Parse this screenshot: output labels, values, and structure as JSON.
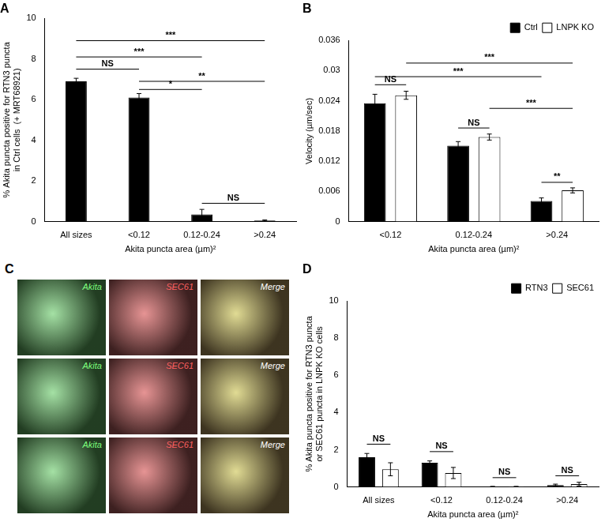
{
  "chart_data": [
    {
      "type": "bar",
      "title": "A",
      "categories": [
        "All sizes",
        "<0.12",
        "0.12-0.24",
        ">0.24"
      ],
      "values": [
        6.9,
        6.1,
        0.35,
        0.05
      ],
      "errors": [
        0.15,
        0.2,
        0.25,
        0.03
      ],
      "color": "#000000",
      "x_label": "Akita puncta area (µm)²",
      "y_label": [
        "% Akita puncta positive for RTN3 puncta",
        "in Ctrl cells  (+ MRT68921)"
      ],
      "ylim": [
        0,
        10
      ],
      "yticks": [
        0,
        2,
        4,
        6,
        8,
        10
      ],
      "grid": false,
      "annotations": [
        {
          "between": [
            "All sizes",
            ">0.24"
          ],
          "y": 8.9,
          "label": "***"
        },
        {
          "between": [
            "All sizes",
            "0.12-0.24"
          ],
          "y": 8.1,
          "label": "***"
        },
        {
          "between": [
            "All sizes",
            "<0.12"
          ],
          "y": 7.5,
          "label": "NS"
        },
        {
          "between": [
            "<0.12",
            ">0.24"
          ],
          "y": 6.9,
          "label": "**"
        },
        {
          "between": [
            "<0.12",
            "0.12-0.24"
          ],
          "y": 6.5,
          "label": "*"
        },
        {
          "between": [
            "0.12-0.24",
            ">0.24"
          ],
          "y": 0.9,
          "label": "NS"
        }
      ]
    },
    {
      "type": "bar",
      "title": "B",
      "categories": [
        "<0.12",
        "0.12-0.24",
        ">0.24"
      ],
      "series": [
        {
          "name": "Ctrl",
          "color": "#000000",
          "values": [
            0.0235,
            0.0151,
            0.0041
          ],
          "errors": [
            0.0018,
            0.0008,
            0.0006
          ]
        },
        {
          "name": "LNPK KO",
          "color": "#ffffff",
          "values": [
            0.0251,
            0.0168,
            0.0062
          ],
          "errors": [
            0.0008,
            0.0006,
            0.0005
          ]
        }
      ],
      "x_label": "Akita puncta area (µm)²",
      "y_label": [
        "Velocity (µm/sec)"
      ],
      "ylim": [
        0,
        0.036
      ],
      "yticks": [
        0,
        0.006,
        0.012,
        0.018,
        0.024,
        0.03,
        0.036
      ],
      "grid": false,
      "legend": "upper right",
      "annotations": [
        {
          "between": [
            [
              "<0.12",
              "Ctrl"
            ],
            [
              "<0.12",
              "LNPK KO"
            ]
          ],
          "y": 0.0272,
          "label": "NS"
        },
        {
          "between": [
            [
              "0.12-0.24",
              "Ctrl"
            ],
            [
              "0.12-0.24",
              "LNPK KO"
            ]
          ],
          "y": 0.0186,
          "label": "NS"
        },
        {
          "between": [
            [
              ">0.24",
              "Ctrl"
            ],
            [
              ">0.24",
              "LNPK KO"
            ]
          ],
          "y": 0.0078,
          "label": "**"
        },
        {
          "between": [
            [
              "<0.12",
              "LNPK KO"
            ],
            [
              ">0.24",
              "LNPK KO"
            ]
          ],
          "y": 0.0315,
          "label": "***"
        },
        {
          "between": [
            [
              "<0.12",
              "Ctrl"
            ],
            [
              ">0.24",
              "Ctrl"
            ]
          ],
          "y": 0.0288,
          "label": "***"
        },
        {
          "between": [
            [
              "0.12-0.24",
              "LNPK KO"
            ],
            [
              ">0.24",
              "LNPK KO"
            ]
          ],
          "y": 0.0225,
          "label": "***"
        }
      ]
    },
    {
      "type": "bar",
      "title": "D",
      "categories": [
        "All sizes",
        "<0.12",
        "0.12-0.24",
        ">0.24"
      ],
      "series": [
        {
          "name": "RTN3",
          "color": "#000000",
          "values": [
            1.6,
            1.3,
            0.02,
            0.1
          ],
          "errors": [
            0.2,
            0.1,
            0.01,
            0.05
          ]
        },
        {
          "name": "SEC61",
          "color": "#ffffff",
          "values": [
            0.95,
            0.75,
            0.02,
            0.15
          ],
          "errors": [
            0.35,
            0.3,
            0.01,
            0.1
          ]
        }
      ],
      "x_label": "Akita puncta area (µm)²",
      "y_label": [
        "% Akita puncta positive for RTN3 puncta",
        "or SEC61 puncta in LNPK KO cells"
      ],
      "ylim": [
        0,
        10
      ],
      "yticks": [
        0,
        2,
        4,
        6,
        8,
        10
      ],
      "grid": false,
      "legend": "upper right",
      "annotations": [
        {
          "between": [
            [
              "All sizes",
              "RTN3"
            ],
            [
              "All sizes",
              "SEC61"
            ]
          ],
          "y": 2.3,
          "label": "NS"
        },
        {
          "between": [
            [
              "<0.12",
              "RTN3"
            ],
            [
              "<0.12",
              "SEC61"
            ]
          ],
          "y": 1.9,
          "label": "NS"
        },
        {
          "between": [
            [
              "0.12-0.24",
              "RTN3"
            ],
            [
              "0.12-0.24",
              "SEC61"
            ]
          ],
          "y": 0.5,
          "label": "NS"
        },
        {
          "between": [
            [
              ">0.24",
              "RTN3"
            ],
            [
              ">0.24",
              "SEC61"
            ]
          ],
          "y": 0.6,
          "label": "NS"
        }
      ]
    }
  ],
  "image_panel": {
    "title": "C",
    "rows": [
      [
        "Akita",
        "SEC61",
        "Merge"
      ],
      [
        "Akita",
        "SEC61",
        "Merge"
      ],
      [
        "Akita",
        "SEC61",
        "Merge"
      ]
    ]
  }
}
